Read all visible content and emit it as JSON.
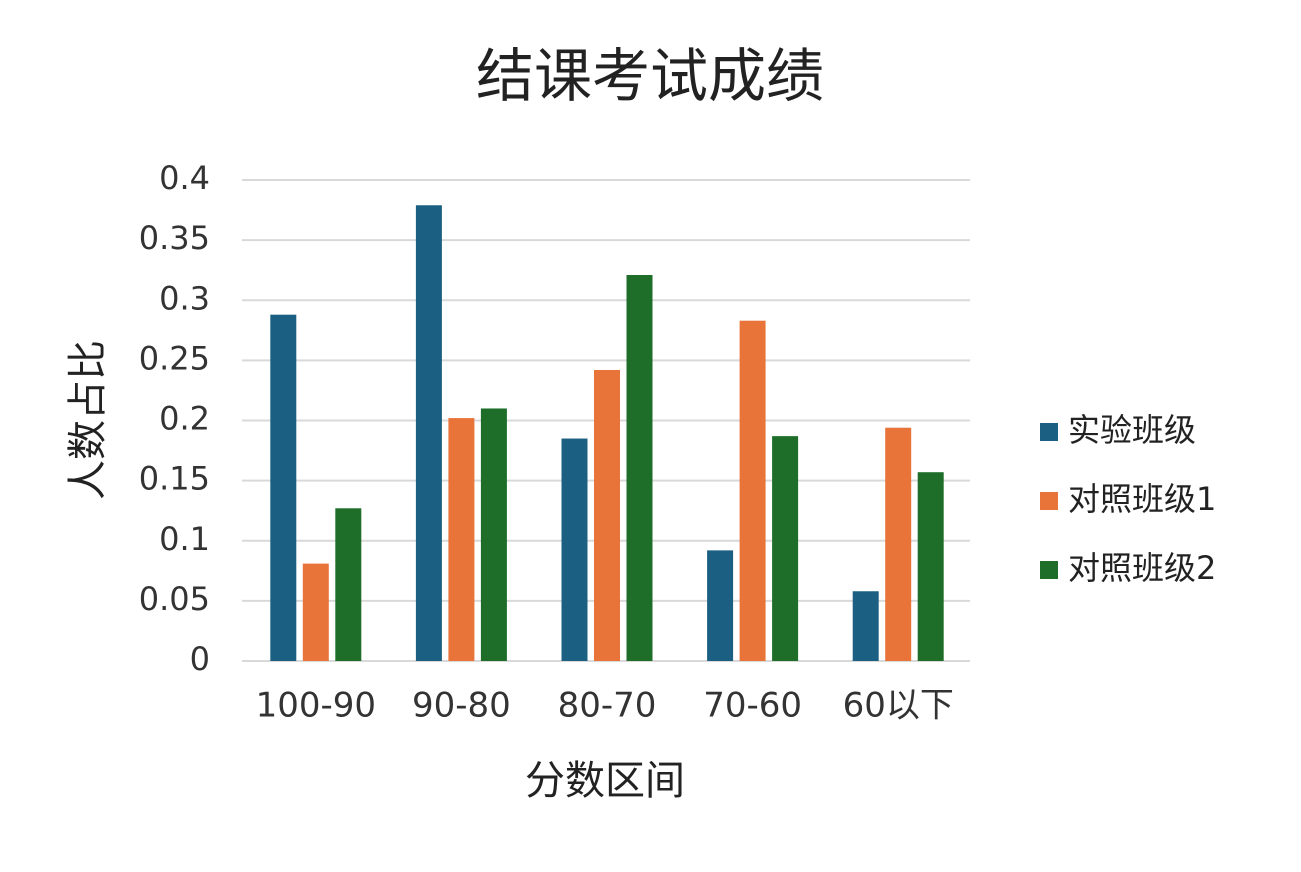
{
  "chart_data": {
    "type": "bar",
    "title": "结课考试成绩",
    "x_label": "分数区间",
    "y_label": "人数占比",
    "categories": [
      "100-90",
      "90-80",
      "80-70",
      "70-60",
      "60以下"
    ],
    "series": [
      {
        "name": "实验班级",
        "color": "#1b6083",
        "values": [
          0.288,
          0.379,
          0.185,
          0.092,
          0.058
        ]
      },
      {
        "name": "对照班级1",
        "color": "#e8743a",
        "values": [
          0.081,
          0.202,
          0.242,
          0.283,
          0.194
        ]
      },
      {
        "name": "对照班级2",
        "color": "#1e6e2a",
        "values": [
          0.127,
          0.21,
          0.321,
          0.187,
          0.157
        ]
      }
    ],
    "ylim": [
      0,
      0.4
    ],
    "yticks": [
      0,
      0.05,
      0.1,
      0.15,
      0.2,
      0.25,
      0.3,
      0.35,
      0.4
    ],
    "grid": true,
    "legend": "right"
  }
}
